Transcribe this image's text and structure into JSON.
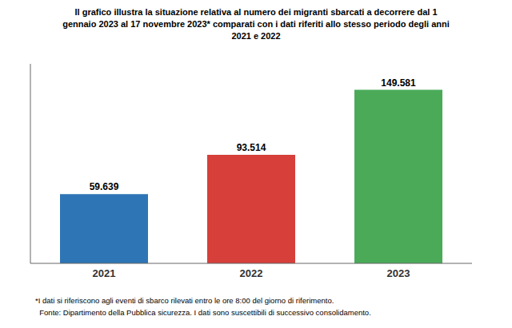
{
  "chart_data": {
    "type": "bar",
    "title": "Il grafico illustra la situazione relativa al numero dei migranti sbarcati a decorrere dal 1\ngennaio 2023 al 17 novembre 2023* comparati con i dati riferiti allo stesso periodo degli anni\n2021 e 2022",
    "categories": [
      "2021",
      "2022",
      "2023"
    ],
    "values": [
      59639,
      93514,
      149581
    ],
    "value_labels": [
      "59.639",
      "93.514",
      "149.581"
    ],
    "colors": [
      "#2e75b6",
      "#d63f3a",
      "#4aaa58"
    ],
    "ylim": [
      0,
      172000
    ],
    "data_labels": true,
    "tick_labels": "x",
    "grid": false,
    "annotations": [
      "*I dati si riferiscono agli eventi di sbarco rilevati entro le ore 8:00 del giorno di riferimento.",
      "  Fonte: Dipartimento della Pubblica sicurezza. I dati sono suscettibili di successivo consolidamento."
    ]
  }
}
